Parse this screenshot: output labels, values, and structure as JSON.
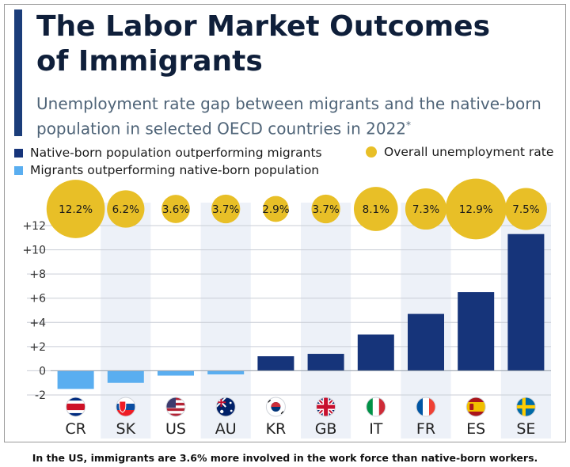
{
  "title_lines": [
    "The Labor Market Outcomes",
    "of Immigrants"
  ],
  "subtitle": "Unemployment rate gap between migrants and the native-born population in selected OECD countries in 2022",
  "subtitle_mark": "*",
  "legend": {
    "native": "Native-born population outperforming migrants",
    "overall": "Overall unemployment rate",
    "migrants": "Migrants outperforming native-born population"
  },
  "colors": {
    "native": "#16347a",
    "migrants": "#5aaef0",
    "overall": "#e8bf27",
    "title_bar": "#1b3d7a",
    "band": "#edf1f8"
  },
  "caption": "In the US, immigrants are 3.6% more involved in the work force than native-born workers.",
  "chart_data": {
    "type": "bar",
    "title": "The Labor Market Outcomes of Immigrants",
    "subtitle": "Unemployment rate gap between migrants and the native-born population in selected OECD countries in 2022",
    "categories": [
      "CR",
      "SK",
      "US",
      "AU",
      "KR",
      "GB",
      "IT",
      "FR",
      "ES",
      "SE"
    ],
    "flags": [
      "flag-costa-rica",
      "flag-slovakia",
      "flag-usa",
      "flag-australia",
      "flag-south-korea",
      "flag-united-kingdom",
      "flag-italy",
      "flag-france",
      "flag-spain",
      "flag-sweden"
    ],
    "series": [
      {
        "name": "Unemployment rate gap",
        "values": [
          -1.5,
          -1.0,
          -0.4,
          -0.3,
          1.2,
          1.4,
          3.0,
          4.7,
          6.5,
          11.3
        ]
      }
    ],
    "overall_unemployment": {
      "values": [
        12.2,
        6.2,
        3.6,
        3.7,
        2.9,
        3.7,
        8.1,
        7.3,
        12.9,
        7.5
      ],
      "labels": [
        "12.2%",
        "6.2%",
        "3.6%",
        "3.7%",
        "2.9%",
        "3.7%",
        "8.1%",
        "7.3%",
        "12.9%",
        "7.5%"
      ]
    },
    "yticks": [
      -2,
      0,
      2,
      4,
      6,
      8,
      10,
      12
    ],
    "ytick_labels": [
      "-2",
      "0",
      "+2",
      "+4",
      "+6",
      "+8",
      "+10",
      "+12"
    ],
    "ylim": [
      -2,
      12
    ],
    "xlabel": "",
    "ylabel": "",
    "grid": true,
    "legend": "top-left"
  }
}
